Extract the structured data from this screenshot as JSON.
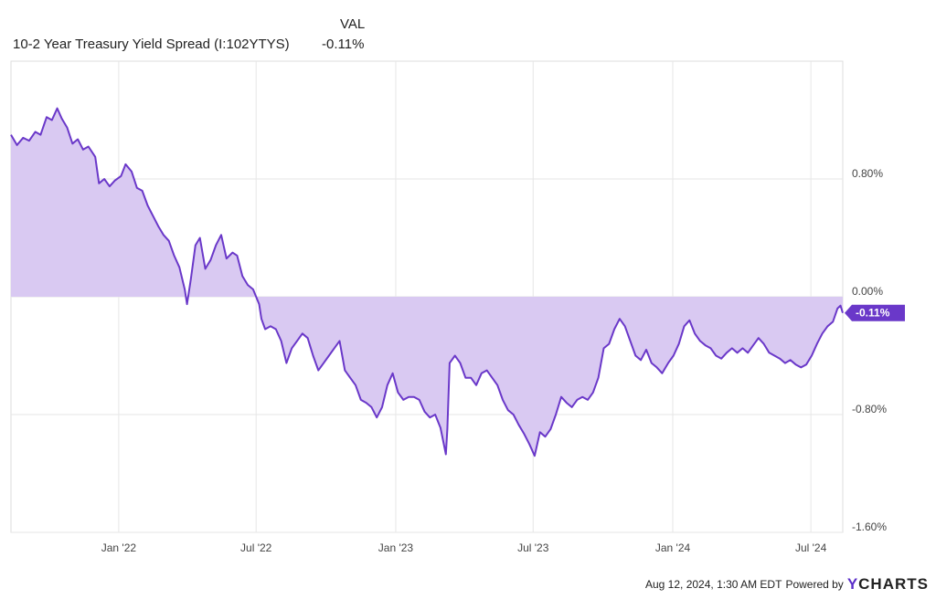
{
  "legend": {
    "column_header": "VAL",
    "series_name": "10-2 Year Treasury Yield Spread (I:102YTYS)",
    "series_value": "-0.11%"
  },
  "footer": {
    "timestamp": "Aug 12, 2024, 1:30 AM EDT",
    "powered_by": "Powered by",
    "brand_y": "Y",
    "brand_rest": "CHARTS"
  },
  "colors": {
    "line": "#6a38c9",
    "fill": "#d9c9f2",
    "badge": "#6a38c9",
    "grid": "#e6e6e6"
  },
  "chart_data": {
    "type": "area",
    "title": "10-2 Year Treasury Yield Spread (I:102YTYS)",
    "xlabel": "",
    "ylabel": "",
    "x_tick_labels": [
      "Jan '22",
      "Jul '22",
      "Jan '23",
      "Jul '23",
      "Jan '24",
      "Jul '24"
    ],
    "x_tick_dates": [
      "2022-01-01",
      "2022-07-01",
      "2023-01-01",
      "2023-07-01",
      "2024-01-01",
      "2024-07-01"
    ],
    "y_tick_labels": [
      "0.80%",
      "0.00%",
      "-0.80%",
      "-1.60%"
    ],
    "y_tick_values": [
      0.8,
      0.0,
      -0.8,
      -1.6
    ],
    "xlim": [
      "2021-08-12",
      "2024-08-12"
    ],
    "ylim": [
      -1.6,
      1.6
    ],
    "grid": true,
    "last_value_label": "-0.11%",
    "series": [
      {
        "name": "10-2 Year Treasury Yield Spread (I:102YTYS)",
        "unit": "%",
        "points": [
          [
            "2021-08-12",
            1.1
          ],
          [
            "2021-08-20",
            1.03
          ],
          [
            "2021-08-28",
            1.08
          ],
          [
            "2021-09-05",
            1.06
          ],
          [
            "2021-09-13",
            1.12
          ],
          [
            "2021-09-20",
            1.1
          ],
          [
            "2021-09-28",
            1.22
          ],
          [
            "2021-10-05",
            1.2
          ],
          [
            "2021-10-12",
            1.28
          ],
          [
            "2021-10-18",
            1.21
          ],
          [
            "2021-10-25",
            1.15
          ],
          [
            "2021-11-01",
            1.04
          ],
          [
            "2021-11-08",
            1.07
          ],
          [
            "2021-11-15",
            1.0
          ],
          [
            "2021-11-22",
            1.02
          ],
          [
            "2021-12-01",
            0.95
          ],
          [
            "2021-12-06",
            0.77
          ],
          [
            "2021-12-13",
            0.8
          ],
          [
            "2021-12-20",
            0.75
          ],
          [
            "2021-12-27",
            0.79
          ],
          [
            "2022-01-04",
            0.82
          ],
          [
            "2022-01-10",
            0.9
          ],
          [
            "2022-01-18",
            0.85
          ],
          [
            "2022-01-25",
            0.74
          ],
          [
            "2022-02-01",
            0.72
          ],
          [
            "2022-02-08",
            0.62
          ],
          [
            "2022-02-15",
            0.55
          ],
          [
            "2022-02-22",
            0.48
          ],
          [
            "2022-03-01",
            0.42
          ],
          [
            "2022-03-08",
            0.38
          ],
          [
            "2022-03-15",
            0.28
          ],
          [
            "2022-03-22",
            0.2
          ],
          [
            "2022-03-29",
            0.05
          ],
          [
            "2022-04-01",
            -0.05
          ],
          [
            "2022-04-06",
            0.12
          ],
          [
            "2022-04-12",
            0.35
          ],
          [
            "2022-04-18",
            0.4
          ],
          [
            "2022-04-25",
            0.19
          ],
          [
            "2022-05-02",
            0.25
          ],
          [
            "2022-05-09",
            0.35
          ],
          [
            "2022-05-16",
            0.42
          ],
          [
            "2022-05-23",
            0.26
          ],
          [
            "2022-05-31",
            0.3
          ],
          [
            "2022-06-06",
            0.28
          ],
          [
            "2022-06-13",
            0.14
          ],
          [
            "2022-06-20",
            0.08
          ],
          [
            "2022-06-27",
            0.05
          ],
          [
            "2022-07-05",
            -0.05
          ],
          [
            "2022-07-08",
            -0.15
          ],
          [
            "2022-07-13",
            -0.22
          ],
          [
            "2022-07-20",
            -0.2
          ],
          [
            "2022-07-27",
            -0.22
          ],
          [
            "2022-08-03",
            -0.3
          ],
          [
            "2022-08-10",
            -0.45
          ],
          [
            "2022-08-17",
            -0.35
          ],
          [
            "2022-08-24",
            -0.3
          ],
          [
            "2022-08-31",
            -0.25
          ],
          [
            "2022-09-07",
            -0.28
          ],
          [
            "2022-09-14",
            -0.4
          ],
          [
            "2022-09-21",
            -0.5
          ],
          [
            "2022-09-28",
            -0.45
          ],
          [
            "2022-10-05",
            -0.4
          ],
          [
            "2022-10-12",
            -0.35
          ],
          [
            "2022-10-19",
            -0.3
          ],
          [
            "2022-10-26",
            -0.5
          ],
          [
            "2022-11-02",
            -0.55
          ],
          [
            "2022-11-09",
            -0.6
          ],
          [
            "2022-11-16",
            -0.7
          ],
          [
            "2022-11-23",
            -0.72
          ],
          [
            "2022-11-30",
            -0.75
          ],
          [
            "2022-12-07",
            -0.82
          ],
          [
            "2022-12-14",
            -0.75
          ],
          [
            "2022-12-21",
            -0.6
          ],
          [
            "2022-12-28",
            -0.52
          ],
          [
            "2023-01-04",
            -0.65
          ],
          [
            "2023-01-11",
            -0.7
          ],
          [
            "2023-01-18",
            -0.68
          ],
          [
            "2023-01-25",
            -0.68
          ],
          [
            "2023-02-01",
            -0.7
          ],
          [
            "2023-02-08",
            -0.78
          ],
          [
            "2023-02-15",
            -0.82
          ],
          [
            "2023-02-22",
            -0.8
          ],
          [
            "2023-03-01",
            -0.89
          ],
          [
            "2023-03-08",
            -1.07
          ],
          [
            "2023-03-10",
            -0.9
          ],
          [
            "2023-03-13",
            -0.45
          ],
          [
            "2023-03-20",
            -0.4
          ],
          [
            "2023-03-27",
            -0.45
          ],
          [
            "2023-04-03",
            -0.55
          ],
          [
            "2023-04-10",
            -0.55
          ],
          [
            "2023-04-17",
            -0.6
          ],
          [
            "2023-04-24",
            -0.52
          ],
          [
            "2023-05-01",
            -0.5
          ],
          [
            "2023-05-08",
            -0.55
          ],
          [
            "2023-05-15",
            -0.6
          ],
          [
            "2023-05-22",
            -0.7
          ],
          [
            "2023-05-29",
            -0.77
          ],
          [
            "2023-06-05",
            -0.8
          ],
          [
            "2023-06-12",
            -0.87
          ],
          [
            "2023-06-19",
            -0.93
          ],
          [
            "2023-06-26",
            -1.0
          ],
          [
            "2023-07-03",
            -1.08
          ],
          [
            "2023-07-10",
            -0.92
          ],
          [
            "2023-07-17",
            -0.95
          ],
          [
            "2023-07-24",
            -0.9
          ],
          [
            "2023-07-31",
            -0.8
          ],
          [
            "2023-08-07",
            -0.68
          ],
          [
            "2023-08-14",
            -0.72
          ],
          [
            "2023-08-21",
            -0.75
          ],
          [
            "2023-08-28",
            -0.7
          ],
          [
            "2023-09-04",
            -0.68
          ],
          [
            "2023-09-11",
            -0.7
          ],
          [
            "2023-09-18",
            -0.65
          ],
          [
            "2023-09-25",
            -0.55
          ],
          [
            "2023-10-02",
            -0.35
          ],
          [
            "2023-10-09",
            -0.32
          ],
          [
            "2023-10-16",
            -0.22
          ],
          [
            "2023-10-23",
            -0.15
          ],
          [
            "2023-10-30",
            -0.2
          ],
          [
            "2023-11-06",
            -0.3
          ],
          [
            "2023-11-13",
            -0.4
          ],
          [
            "2023-11-20",
            -0.43
          ],
          [
            "2023-11-27",
            -0.36
          ],
          [
            "2023-12-04",
            -0.45
          ],
          [
            "2023-12-11",
            -0.48
          ],
          [
            "2023-12-18",
            -0.52
          ],
          [
            "2023-12-26",
            -0.45
          ],
          [
            "2024-01-02",
            -0.4
          ],
          [
            "2024-01-09",
            -0.32
          ],
          [
            "2024-01-16",
            -0.2
          ],
          [
            "2024-01-23",
            -0.16
          ],
          [
            "2024-01-30",
            -0.25
          ],
          [
            "2024-02-06",
            -0.3
          ],
          [
            "2024-02-13",
            -0.33
          ],
          [
            "2024-02-20",
            -0.35
          ],
          [
            "2024-02-27",
            -0.4
          ],
          [
            "2024-03-05",
            -0.42
          ],
          [
            "2024-03-12",
            -0.38
          ],
          [
            "2024-03-19",
            -0.35
          ],
          [
            "2024-03-26",
            -0.38
          ],
          [
            "2024-04-02",
            -0.35
          ],
          [
            "2024-04-09",
            -0.38
          ],
          [
            "2024-04-16",
            -0.33
          ],
          [
            "2024-04-23",
            -0.28
          ],
          [
            "2024-04-30",
            -0.32
          ],
          [
            "2024-05-07",
            -0.38
          ],
          [
            "2024-05-14",
            -0.4
          ],
          [
            "2024-05-21",
            -0.42
          ],
          [
            "2024-05-28",
            -0.45
          ],
          [
            "2024-06-04",
            -0.43
          ],
          [
            "2024-06-11",
            -0.46
          ],
          [
            "2024-06-18",
            -0.48
          ],
          [
            "2024-06-25",
            -0.46
          ],
          [
            "2024-07-02",
            -0.4
          ],
          [
            "2024-07-09",
            -0.32
          ],
          [
            "2024-07-16",
            -0.25
          ],
          [
            "2024-07-23",
            -0.2
          ],
          [
            "2024-07-30",
            -0.17
          ],
          [
            "2024-08-05",
            -0.08
          ],
          [
            "2024-08-09",
            -0.06
          ],
          [
            "2024-08-12",
            -0.11
          ]
        ]
      }
    ]
  }
}
